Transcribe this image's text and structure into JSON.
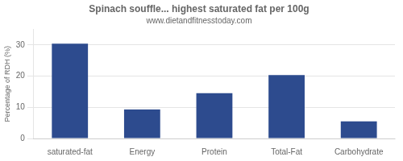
{
  "chart_data": {
    "type": "bar",
    "title": "Spinach souffle... highest saturated fat per 100g",
    "subtitle": "www.dietandfitnesstoday.com",
    "categories": [
      "saturated-fat",
      "Energy",
      "Protein",
      "Total-Fat",
      "Carbohydrate"
    ],
    "values": [
      30.4,
      9.3,
      14.5,
      20.3,
      5.5
    ],
    "color": "#2d4b8e",
    "ylabel": "Percentage of RDH (%)",
    "ylim": [
      0,
      35
    ],
    "yticks": [
      0,
      10,
      20,
      30
    ],
    "grid": true
  }
}
